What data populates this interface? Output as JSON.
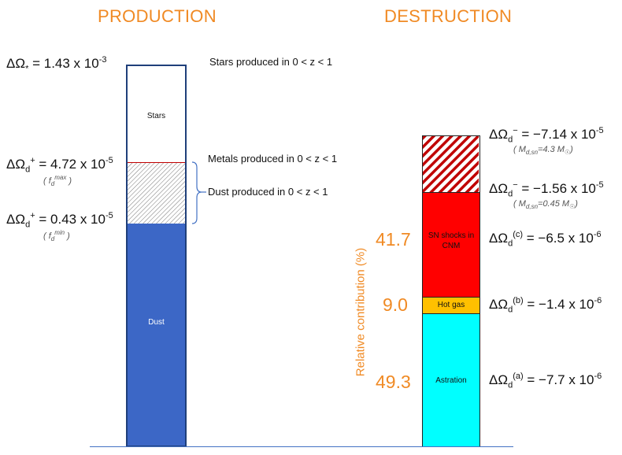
{
  "production": {
    "title": "PRODUCTION",
    "stars_eq": "ΔΩ",
    "stars_sub": "*",
    "stars_value": "= 1.43 x 10",
    "stars_exp": "-3",
    "stars_annotation": "Stars produced in 0 < z < 1",
    "metals_annotation": "Metals produced in 0 < z < 1",
    "dust_annotation": "Dust produced in 0 < z < 1",
    "dmax_eq": "ΔΩ",
    "dmax_sub": "d",
    "dmax_sup": "+",
    "dmax_value": " = 4.72 x 10",
    "dmax_exp": "-5",
    "dmax_note_open": "( f",
    "dmax_note_sub": "d",
    "dmax_note_sup": "max",
    "dmax_note_close": " )",
    "dmin_eq": "ΔΩ",
    "dmin_sub": "d",
    "dmin_sup": "+",
    "dmin_value": " = 0.43 x 10",
    "dmin_exp": "-5",
    "dmin_note_open": "( f",
    "dmin_note_sub": "d",
    "dmin_note_sup": "min",
    "dmin_note_close": " )",
    "bar_label_stars": "Stars",
    "bar_label_dust": "Dust"
  },
  "destruction": {
    "title": "DESTRUCTION",
    "axis_label": "Relative contribution (%)",
    "pct_sn": "41.7",
    "pct_hot": "9.0",
    "pct_astration": "49.3",
    "label_sn": "SN shocks in CNM",
    "label_hot": "Hot gas",
    "label_astration": "Astration",
    "e1_sym": "ΔΩ",
    "e1_sub": "d",
    "e1_sup": "−",
    "e1_value": " = −7.14 x 10",
    "e1_exp": "-5",
    "e1_note_open": "( M",
    "e1_note_sub": "d,sn",
    "e1_note_val": "=4.3 M",
    "e1_note_sun": "☉",
    "e1_note_close": ")",
    "e2_sym": "ΔΩ",
    "e2_sub": "d",
    "e2_sup": "−",
    "e2_value": " = −1.56 x 10",
    "e2_exp": "-5",
    "e2_note_open": "( M",
    "e2_note_sub": "d,sn",
    "e2_note_val": "=0.45 M",
    "e2_note_sun": "☉",
    "e2_note_close": ")",
    "e3_sym": "ΔΩ",
    "e3_sub": "d",
    "e3_sup": "(c)",
    "e3_value": " = −6.5 x 10",
    "e3_exp": "-6",
    "e4_sym": "ΔΩ",
    "e4_sub": "d",
    "e4_sup": "(b)",
    "e4_value": " = −1.4 x 10",
    "e4_exp": "-6",
    "e5_sym": "ΔΩ",
    "e5_sub": "d",
    "e5_sup": "(a)",
    "e5_value": " = −7.7 x 10",
    "e5_exp": "-6"
  },
  "colors": {
    "orange": "#f08a24",
    "dust_blue": "#3c67c6",
    "sn_red": "#ff0000",
    "hot_gas": "#ffc000",
    "astration": "#00ffff"
  }
}
